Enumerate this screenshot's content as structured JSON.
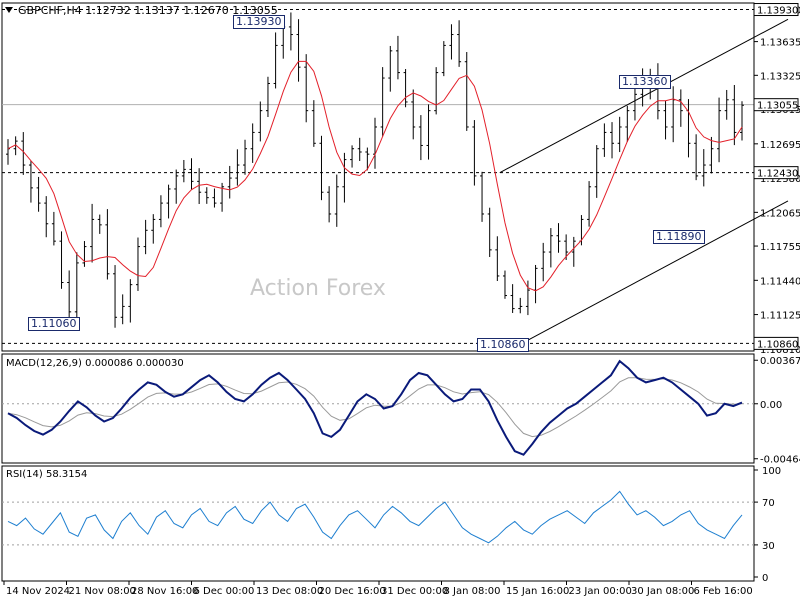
{
  "header": {
    "symbol": "GBPCHF,H4",
    "ohlc": "1.12732 1.13137 1.12670 1.13055"
  },
  "watermark": "Action Forex",
  "colors": {
    "candle": "#000000",
    "ma": "#e3202a",
    "macd": "#0a1a7a",
    "signal": "#9a9a9a",
    "rsi": "#1e7fd0",
    "channel": "#000000",
    "level": "#000000",
    "tag_border": "#1a2a6b"
  },
  "chart_data": [
    {
      "type": "candlestick",
      "panel": "price",
      "ylim": [
        1.1079,
        1.1399
      ],
      "y_ticks": [
        "1.13930",
        "1.13635",
        "1.13325",
        "1.13015",
        "1.12695",
        "1.12380",
        "1.12065",
        "1.11755",
        "1.11440",
        "1.11125",
        "1.10810"
      ],
      "current_price": "1.13055",
      "x_labels": [
        "14 Nov 2024",
        "21 Nov 08:00",
        "28 Nov 16:00",
        "6 Dec 00:00",
        "13 Dec 08:00",
        "20 Dec 16:00",
        "31 Dec 00:00",
        "8 Jan 08:00",
        "15 Jan 16:00",
        "23 Jan 00:00",
        "30 Jan 08:00",
        "6 Feb 16:00"
      ],
      "horizontal_levels": [
        "1.13930",
        "1.12430",
        "1.10860"
      ],
      "level_tags": [
        "1.13930",
        "1.13360",
        "1.11890",
        "1.11060",
        "1.10860"
      ],
      "channel": {
        "upper": [
          [
            "15 Jan 00:00",
            1.1243
          ],
          [
            "7 Feb 20:00",
            1.1378
          ]
        ],
        "lower": [
          [
            "16 Jan 00:00",
            1.1086
          ],
          [
            "7 Feb 20:00",
            1.1211
          ]
        ]
      },
      "close_series": [
        1.1265,
        1.1272,
        1.125,
        1.1229,
        1.1215,
        1.1196,
        1.118,
        1.1142,
        1.1115,
        1.116,
        1.1175,
        1.12,
        1.1195,
        1.115,
        1.111,
        1.112,
        1.114,
        1.1175,
        1.119,
        1.12,
        1.1215,
        1.1228,
        1.124,
        1.1246,
        1.1235,
        1.1225,
        1.122,
        1.1215,
        1.123,
        1.1238,
        1.125,
        1.1265,
        1.128,
        1.13,
        1.1325,
        1.136,
        1.1377,
        1.137,
        1.134,
        1.13,
        1.127,
        1.1225,
        1.1205,
        1.123,
        1.1255,
        1.1265,
        1.1262,
        1.126,
        1.1285,
        1.133,
        1.1355,
        1.1335,
        1.1308,
        1.1285,
        1.1268,
        1.13,
        1.1335,
        1.136,
        1.137,
        1.1345,
        1.1285,
        1.124,
        1.1205,
        1.1172,
        1.1148,
        1.113,
        1.1118,
        1.112,
        1.1135,
        1.1155,
        1.117,
        1.1185,
        1.118,
        1.117,
        1.118,
        1.12,
        1.123,
        1.1265,
        1.128,
        1.127,
        1.1285,
        1.13,
        1.1315,
        1.1325,
        1.133,
        1.13,
        1.1285,
        1.131,
        1.13,
        1.127,
        1.124,
        1.125,
        1.1265,
        1.13,
        1.131,
        1.128,
        1.1305
      ]
    },
    {
      "type": "line",
      "panel": "macd",
      "title": "MACD(12,26,9) 0.000086 0.000030",
      "ylim": [
        -0.005,
        0.0042
      ],
      "y_ticks": [
        "0.003673",
        "0.00",
        "-0.004641"
      ],
      "series": [
        {
          "name": "MACD",
          "values": [
            -0.0008,
            -0.0012,
            -0.0018,
            -0.0023,
            -0.0026,
            -0.0022,
            -0.0015,
            -0.0006,
            0.0002,
            -0.0003,
            -0.001,
            -0.0015,
            -0.0012,
            -0.0004,
            0.0005,
            0.0012,
            0.0018,
            0.0016,
            0.001,
            0.0006,
            0.0008,
            0.0014,
            0.002,
            0.0024,
            0.0018,
            0.001,
            0.0004,
            0.0002,
            0.0008,
            0.0016,
            0.0022,
            0.0026,
            0.002,
            0.0012,
            0.0004,
            -0.0008,
            -0.0025,
            -0.0028,
            -0.0022,
            -0.001,
            0.0002,
            0.0008,
            0.0004,
            -0.0004,
            -0.0002,
            0.0008,
            0.002,
            0.0026,
            0.0024,
            0.0016,
            0.0008,
            0.0002,
            0.0004,
            0.0012,
            0.0012,
            0.0002,
            -0.0014,
            -0.0028,
            -0.004,
            -0.0043,
            -0.0034,
            -0.0024,
            -0.0016,
            -0.001,
            -0.0004,
            0.0,
            0.0006,
            0.0012,
            0.0018,
            0.0024,
            0.0036,
            0.003,
            0.0022,
            0.0018,
            0.002,
            0.0022,
            0.0018,
            0.0012,
            0.0006,
            0.0,
            -0.001,
            -0.0008,
            0.0,
            -0.0002,
            0.0001
          ]
        }
      ]
    },
    {
      "type": "line",
      "panel": "rsi",
      "title": "RSI(14) 58.3154",
      "ylim": [
        0,
        100
      ],
      "y_ticks": [
        "100",
        "70",
        "30",
        "0"
      ],
      "levels": [
        70,
        30
      ],
      "series": [
        {
          "name": "RSI",
          "values": [
            52,
            48,
            55,
            45,
            40,
            50,
            60,
            42,
            38,
            55,
            58,
            44,
            36,
            52,
            60,
            48,
            40,
            56,
            62,
            50,
            46,
            58,
            64,
            52,
            48,
            60,
            66,
            54,
            50,
            62,
            70,
            58,
            52,
            64,
            68,
            56,
            42,
            36,
            48,
            58,
            62,
            54,
            46,
            58,
            66,
            60,
            52,
            48,
            56,
            64,
            70,
            58,
            46,
            40,
            36,
            32,
            38,
            46,
            52,
            44,
            40,
            48,
            54,
            58,
            62,
            56,
            50,
            60,
            66,
            72,
            80,
            68,
            58,
            62,
            56,
            48,
            52,
            58,
            62,
            50,
            44,
            40,
            36,
            48,
            58
          ]
        }
      ]
    }
  ]
}
